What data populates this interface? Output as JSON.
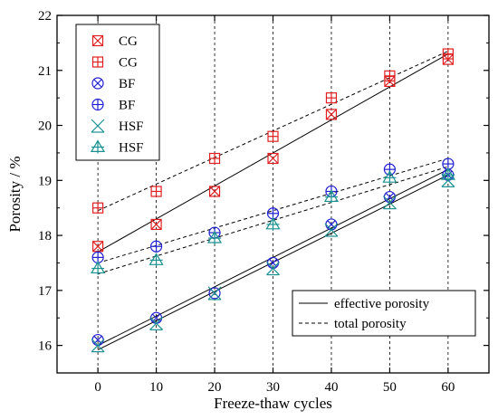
{
  "chart_data": {
    "type": "scatter",
    "xlabel": "Freeze-thaw cycles",
    "ylabel": "Porosity / %",
    "xlim": [
      -7,
      67
    ],
    "ylim": [
      15.5,
      22
    ],
    "x_ticks": [
      0,
      10,
      20,
      30,
      40,
      50,
      60
    ],
    "y_ticks": [
      16,
      17,
      18,
      19,
      20,
      21,
      22
    ],
    "vertical_dashed_grid_at": [
      0,
      10,
      20,
      30,
      40,
      50,
      60
    ],
    "series": [
      {
        "name": "CG",
        "marker": "square-x",
        "color": "#e02020",
        "measure": "effective",
        "x": [
          0,
          10,
          20,
          30,
          40,
          50,
          60
        ],
        "y": [
          17.8,
          18.2,
          18.8,
          19.4,
          20.2,
          20.8,
          21.2
        ],
        "fit": {
          "style": "solid",
          "y": [
            17.7,
            21.3
          ]
        }
      },
      {
        "name": "CG",
        "marker": "square-plus",
        "color": "#e02020",
        "measure": "total",
        "x": [
          0,
          10,
          20,
          30,
          40,
          50,
          60
        ],
        "y": [
          18.5,
          18.8,
          19.4,
          19.8,
          20.5,
          20.9,
          21.3
        ],
        "fit": {
          "style": "dashed",
          "y": [
            18.45,
            21.35
          ]
        }
      },
      {
        "name": "BF",
        "marker": "circle-x",
        "color": "#2020d0",
        "measure": "effective",
        "x": [
          0,
          10,
          20,
          30,
          40,
          50,
          60
        ],
        "y": [
          16.1,
          16.5,
          16.95,
          17.5,
          18.2,
          18.7,
          19.1
        ],
        "fit": {
          "style": "solid",
          "y": [
            16.0,
            19.2
          ]
        }
      },
      {
        "name": "BF",
        "marker": "circle-plus",
        "color": "#2020d0",
        "measure": "total",
        "x": [
          0,
          10,
          20,
          30,
          40,
          50,
          60
        ],
        "y": [
          17.6,
          17.8,
          18.05,
          18.4,
          18.8,
          19.2,
          19.3
        ],
        "fit": {
          "style": "dashed",
          "y": [
            17.5,
            19.4
          ]
        }
      },
      {
        "name": "HSF",
        "marker": "star-x",
        "color": "#1a9090",
        "measure": "effective",
        "x": [
          0,
          10,
          20,
          30,
          40,
          50,
          60
        ],
        "y": [
          16.0,
          16.4,
          16.95,
          17.4,
          18.1,
          18.6,
          19.0
        ],
        "fit": {
          "style": "solid",
          "y": [
            15.92,
            19.1
          ]
        }
      },
      {
        "name": "HSF",
        "marker": "triangle",
        "color": "#1a9090",
        "measure": "total",
        "x": [
          0,
          10,
          20,
          30,
          40,
          50,
          60
        ],
        "y": [
          17.4,
          17.55,
          17.95,
          18.2,
          18.7,
          19.05,
          19.1
        ],
        "fit": {
          "style": "dashed",
          "y": [
            17.3,
            19.25
          ]
        }
      }
    ],
    "legend": {
      "placement": "top-left",
      "entries": [
        "CG",
        "CG",
        "BF",
        "BF",
        "HSF",
        "HSF"
      ]
    },
    "line_legend": {
      "placement": "bottom-right",
      "entries": [
        {
          "label": "effective porosity",
          "style": "solid"
        },
        {
          "label": "total porosity",
          "style": "dashed"
        }
      ]
    }
  }
}
